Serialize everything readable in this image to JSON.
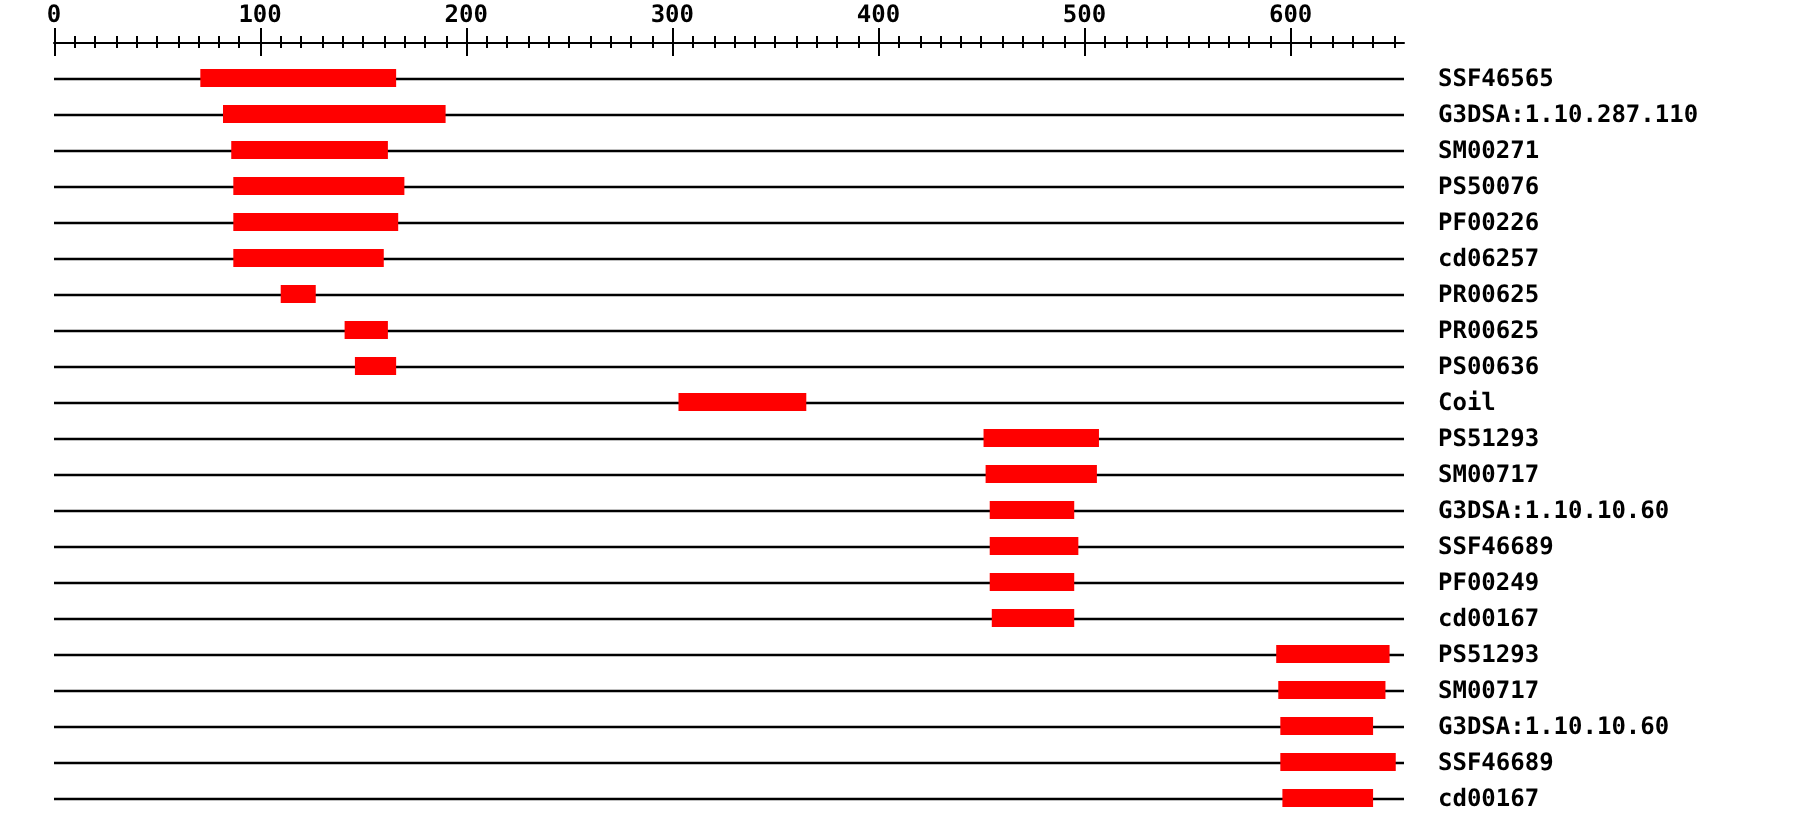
{
  "chart_data": {
    "type": "bar",
    "orientation": "horizontal",
    "categories": [
      "SSF46565",
      "G3DSA:1.10.287.110",
      "SM00271",
      "PS50076",
      "PF00226",
      "cd06257",
      "PR00625",
      "PR00625",
      "PS00636",
      "Coil",
      "PS51293",
      "SM00717",
      "G3DSA:1.10.10.60",
      "SSF46689",
      "PF00249",
      "cd00167",
      "PS51293",
      "SM00717",
      "G3DSA:1.10.10.60",
      "SSF46689",
      "cd00167"
    ],
    "base": [
      71,
      82,
      86,
      87,
      87,
      87,
      110,
      141,
      146,
      303,
      451,
      452,
      454,
      454,
      454,
      455,
      593,
      594,
      595,
      595,
      596
    ],
    "values": [
      95,
      108,
      76,
      83,
      80,
      73,
      17,
      21,
      20,
      62,
      56,
      54,
      41,
      43,
      41,
      40,
      55,
      52,
      45,
      56,
      44
    ],
    "color": "#ff0000",
    "xlim": [
      0,
      655
    ],
    "xticks": [
      0,
      {
        "value": 10,
        "label": null
      },
      {
        "value": 20,
        "label": null
      },
      {
        "value": 30,
        "label": null
      },
      {
        "value": 40,
        "label": null
      },
      {
        "value": 50,
        "label": null
      },
      {
        "value": 60,
        "label": null
      },
      {
        "value": 70,
        "label": null
      },
      {
        "value": 80,
        "label": null
      },
      {
        "value": 90,
        "label": null
      },
      100,
      {
        "value": 110,
        "label": null
      },
      {
        "value": 120,
        "label": null
      },
      {
        "value": 130,
        "label": null
      },
      {
        "value": 140,
        "label": null
      },
      {
        "value": 150,
        "label": null
      },
      {
        "value": 160,
        "label": null
      },
      {
        "value": 170,
        "label": null
      },
      {
        "value": 180,
        "label": null
      },
      {
        "value": 190,
        "label": null
      },
      200,
      {
        "value": 210,
        "label": null
      },
      {
        "value": 220,
        "label": null
      },
      {
        "value": 230,
        "label": null
      },
      {
        "value": 240,
        "label": null
      },
      {
        "value": 250,
        "label": null
      },
      {
        "value": 260,
        "label": null
      },
      {
        "value": 270,
        "label": null
      },
      {
        "value": 280,
        "label": null
      },
      {
        "value": 290,
        "label": null
      },
      300,
      {
        "value": 310,
        "label": null
      },
      {
        "value": 320,
        "label": null
      },
      {
        "value": 330,
        "label": null
      },
      {
        "value": 340,
        "label": null
      },
      {
        "value": 350,
        "label": null
      },
      {
        "value": 360,
        "label": null
      },
      {
        "value": 370,
        "label": null
      },
      {
        "value": 380,
        "label": null
      },
      {
        "value": 390,
        "label": null
      },
      400,
      {
        "value": 410,
        "label": null
      },
      {
        "value": 420,
        "label": null
      },
      {
        "value": 430,
        "label": null
      },
      {
        "value": 440,
        "label": null
      },
      {
        "value": 450,
        "label": null
      },
      {
        "value": 460,
        "label": null
      },
      {
        "value": 470,
        "label": null
      },
      {
        "value": 480,
        "label": null
      },
      {
        "value": 490,
        "label": null
      },
      500,
      {
        "value": 510,
        "label": null
      },
      {
        "value": 520,
        "label": null
      },
      {
        "value": 530,
        "label": null
      },
      {
        "value": 540,
        "label": null
      },
      {
        "value": 550,
        "label": null
      },
      {
        "value": 560,
        "label": null
      },
      {
        "value": 570,
        "label": null
      },
      {
        "value": 580,
        "label": null
      },
      {
        "value": 590,
        "label": null
      },
      600,
      {
        "value": 610,
        "label": null
      },
      {
        "value": 620,
        "label": null
      },
      {
        "value": 630,
        "label": null
      },
      {
        "value": 640,
        "label": null
      },
      {
        "value": 650,
        "label": null
      }
    ],
    "grid": "y"
  }
}
